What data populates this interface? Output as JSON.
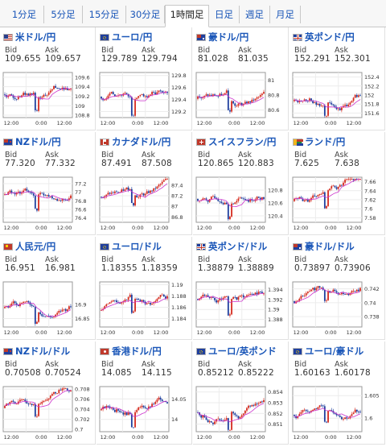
{
  "tabs": [
    {
      "label": "1分足",
      "active": false
    },
    {
      "label": "5分足",
      "active": false
    },
    {
      "label": "15分足",
      "active": false
    },
    {
      "label": "30分足",
      "active": false
    },
    {
      "label": "1時間足",
      "active": true
    },
    {
      "label": "日足",
      "active": false
    },
    {
      "label": "週足",
      "active": false
    },
    {
      "label": "月足",
      "active": false
    }
  ],
  "bid_label": "Bid",
  "ask_label": "Ask",
  "x_ticks": [
    "12:00",
    "0:00",
    "12:00"
  ],
  "colors": {
    "link": "#1a56b8",
    "up": "#d52b1e",
    "down": "#1f3f9e",
    "ma": "#cc33cc"
  },
  "pairs": [
    {
      "name": "米ドル/円",
      "flag": "us",
      "bid": "109.655",
      "ask": "109.657",
      "yticks": [
        "109.6",
        "109.4",
        "109.2",
        "109",
        "108.8"
      ],
      "ylim": [
        108.75,
        109.7
      ],
      "seed": 1
    },
    {
      "name": "ユーロ/円",
      "flag": "eu",
      "bid": "129.789",
      "ask": "129.794",
      "yticks": [
        "129.8",
        "129.6",
        "129.4",
        "129.2"
      ],
      "ylim": [
        129.1,
        129.85
      ],
      "seed": 2
    },
    {
      "name": "豪ドル/円",
      "flag": "au",
      "bid": "81.028",
      "ask": "81.035",
      "yticks": [
        "81",
        "80.8",
        "80.6"
      ],
      "ylim": [
        80.5,
        81.1
      ],
      "seed": 3
    },
    {
      "name": "英ポンド/円",
      "flag": "uk",
      "bid": "152.291",
      "ask": "152.301",
      "yticks": [
        "152.4",
        "152.2",
        "152",
        "151.8",
        "151.6"
      ],
      "ylim": [
        151.5,
        152.5
      ],
      "seed": 4
    },
    {
      "name": "NZドル/円",
      "flag": "nz",
      "bid": "77.320",
      "ask": "77.332",
      "yticks": [
        "77.2",
        "77",
        "76.8",
        "76.6",
        "76.4"
      ],
      "ylim": [
        76.3,
        77.35
      ],
      "seed": 5
    },
    {
      "name": "カナダドル/円",
      "flag": "ca",
      "bid": "87.491",
      "ask": "87.508",
      "yticks": [
        "87.4",
        "87.2",
        "87",
        "86.8"
      ],
      "ylim": [
        86.7,
        87.55
      ],
      "seed": 6
    },
    {
      "name": "スイスフラン/円",
      "flag": "ch",
      "bid": "120.865",
      "ask": "120.883",
      "yticks": [
        "120.8",
        "120.6",
        "120.4"
      ],
      "ylim": [
        120.3,
        121.0
      ],
      "seed": 7
    },
    {
      "name": "ランド/円",
      "flag": "za",
      "bid": "7.625",
      "ask": "7.638",
      "yticks": [
        "7.66",
        "7.64",
        "7.62",
        "7.6",
        "7.58"
      ],
      "ylim": [
        7.57,
        7.67
      ],
      "seed": 8
    },
    {
      "name": "人民元/円",
      "flag": "cn",
      "bid": "16.951",
      "ask": "16.981",
      "yticks": [
        "16.9",
        "16.85"
      ],
      "ylim": [
        16.82,
        16.98
      ],
      "seed": 9
    },
    {
      "name": "ユーロ/ドル",
      "flag": "eu",
      "bid": "1.18355",
      "ask": "1.18359",
      "yticks": [
        "1.19",
        "1.188",
        "1.186",
        "1.184"
      ],
      "ylim": [
        1.1825,
        1.1905
      ],
      "seed": 10
    },
    {
      "name": "英ポンド/ドル",
      "flag": "uk",
      "bid": "1.38879",
      "ask": "1.38889",
      "yticks": [
        "1.394",
        "1.392",
        "1.39",
        "1.388"
      ],
      "ylim": [
        1.3865,
        1.3955
      ],
      "seed": 11
    },
    {
      "name": "豪ドル/ドル",
      "flag": "au",
      "bid": "0.73897",
      "ask": "0.73906",
      "yticks": [
        "0.742",
        "0.74",
        "0.738"
      ],
      "ylim": [
        0.7365,
        0.743
      ],
      "seed": 12
    },
    {
      "name": "NZドル/ドル",
      "flag": "nz",
      "bid": "0.70508",
      "ask": "0.70524",
      "yticks": [
        "0.708",
        "0.706",
        "0.704",
        "0.702",
        "0.7"
      ],
      "ylim": [
        0.6995,
        0.7085
      ],
      "seed": 13
    },
    {
      "name": "香港ドル/円",
      "flag": "hk",
      "bid": "14.085",
      "ask": "14.115",
      "yticks": [
        "14.05",
        "14"
      ],
      "ylim": [
        13.97,
        14.08
      ],
      "seed": 14
    },
    {
      "name": "ユーロ/英ポンド",
      "flag": "eu",
      "bid": "0.85212",
      "ask": "0.85222",
      "yticks": [
        "0.854",
        "0.853",
        "0.852",
        "0.851"
      ],
      "ylim": [
        0.8503,
        0.8545
      ],
      "seed": 15
    },
    {
      "name": "ユーロ/豪ドル",
      "flag": "eu",
      "bid": "1.60163",
      "ask": "1.60178",
      "yticks": [
        "1.605",
        "1.6"
      ],
      "ylim": [
        1.597,
        1.607
      ],
      "seed": 16
    }
  ]
}
